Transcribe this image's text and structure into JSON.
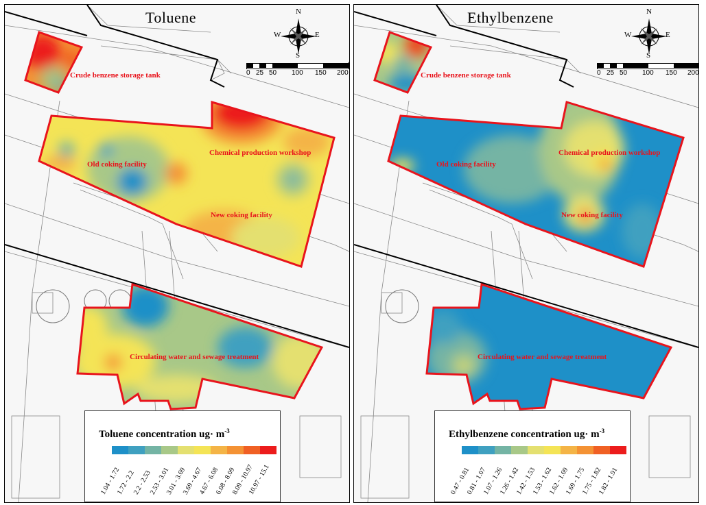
{
  "compass": {
    "north": "N",
    "south": "S",
    "east": "E",
    "west": "W"
  },
  "scale": {
    "ticks": [
      "0",
      "25",
      "50",
      "100",
      "150",
      "200"
    ],
    "unit": "m"
  },
  "panels": {
    "toluene": {
      "title": "Toluene",
      "zones": {
        "crude": "Crude benzene storage tank",
        "chemical": "Chemical production workshop",
        "old_coking": "Old coking facility",
        "new_coking": "New coking facility",
        "water": "Circulating water and sewage treatment"
      },
      "legend": {
        "title": "Toluene concentration ug· m",
        "superscript": "-3",
        "ranges": [
          "1.04 - 1.72",
          "1.72 - 2.2",
          "2.2 - 2.53",
          "2.53 - 3.01",
          "3.01 - 3.69",
          "3.69 - 4.67",
          "4.67 - 6.08",
          "6.08 - 8.09",
          "8.09 - 10.97",
          "10.97 - 15.1"
        ]
      }
    },
    "ethylbenzene": {
      "title": "Ethylbenzene",
      "zones": {
        "crude": "Crude benzene storage tank",
        "chemical": "Chemical production workshop",
        "old_coking": "Old coking facility",
        "new_coking": "New coking facility",
        "water": "Circulating water and sewage treatment"
      },
      "legend": {
        "title": "Ethylbenzene concentration ug· m",
        "superscript": "-3",
        "ranges": [
          "0.47 - 0.81",
          "0.81 - 1.07",
          "1.07 - 1.26",
          "1.26 - 1.42",
          "1.42 - 1.53",
          "1.53 - 1.62",
          "1.62 - 1.69",
          "1.69 - 1.75",
          "1.75 - 1.82",
          "1.82 - 1.91"
        ]
      }
    }
  },
  "legend_colors": [
    "#1e90c8",
    "#3fa0c0",
    "#74b4a4",
    "#a8c888",
    "#e4e070",
    "#f4e456",
    "#f4b446",
    "#f49234",
    "#f06024",
    "#ec1c1c"
  ],
  "zone_border_color": "#e8141c"
}
